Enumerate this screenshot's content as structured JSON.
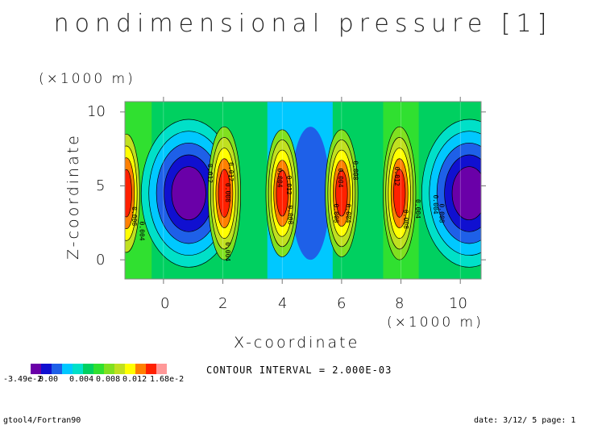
{
  "title": "nondimensional pressure [1]",
  "x_unit": "(×1000 m)",
  "y_unit": "(×1000 m)",
  "xlabel": "X-coordinate",
  "ylabel": "Z-coordinate",
  "x_ticks": [
    "0",
    "2",
    "4",
    "6",
    "8",
    "10"
  ],
  "y_ticks": [
    "10",
    "5",
    "0"
  ],
  "contour_interval": "CONTOUR INTERVAL = 2.000E-03",
  "colorbar": {
    "labels": [
      "-3.49e-2",
      "0.00",
      "0.004",
      "0.008",
      "0.012",
      "1.68e-2"
    ],
    "colors": [
      "#6a00a8",
      "#1010d0",
      "#1e60e8",
      "#00c8ff",
      "#00e0c8",
      "#00d060",
      "#30e030",
      "#80e020",
      "#c0e020",
      "#ffff00",
      "#ff8000",
      "#ff2000",
      "#ff9898"
    ]
  },
  "footer_left": "gtool4/Fortran90",
  "footer_right": "date: 3/12/ 5 page: 1",
  "contour_labels": [
    "0.012",
    "0.008",
    "0.004",
    "0.004",
    "0.008",
    "0.012",
    "0.008",
    "0.004",
    "0.004",
    "0.008",
    "0.012",
    "0.008",
    "0.004",
    "0.012",
    "0.008",
    "0.004",
    "0.004",
    "0.008"
  ],
  "chart_data": {
    "type": "heatmap",
    "title": "nondimensional pressure [1]",
    "xlabel": "X-coordinate",
    "ylabel": "Z-coordinate",
    "xlim": [
      -1.3,
      10.7
    ],
    "ylim": [
      -1.3,
      10.7
    ],
    "x_ticks": [
      0,
      2,
      4,
      6,
      8,
      10
    ],
    "y_ticks": [
      0,
      5,
      10
    ],
    "value_range": [
      -0.0349,
      0.0168
    ],
    "contour_interval": 0.002,
    "features": [
      {
        "x": 0.7,
        "z": 4.5,
        "value": -0.0349,
        "kind": "minimum"
      },
      {
        "x": 10.3,
        "z": 4.5,
        "value": -0.0349,
        "kind": "minimum"
      },
      {
        "x": 2.0,
        "z": 4.5,
        "value": 0.0168,
        "kind": "maximum"
      },
      {
        "x": 4.0,
        "z": 4.5,
        "value": 0.0168,
        "kind": "maximum"
      },
      {
        "x": 6.0,
        "z": 4.5,
        "value": 0.0168,
        "kind": "maximum"
      },
      {
        "x": 8.0,
        "z": 4.5,
        "value": 0.0168,
        "kind": "maximum"
      },
      {
        "x": 5.0,
        "z": 4.5,
        "value": -0.008,
        "kind": "minimum"
      },
      {
        "x": -1.2,
        "z": 4.5,
        "value": 0.014,
        "kind": "maximum"
      }
    ]
  }
}
